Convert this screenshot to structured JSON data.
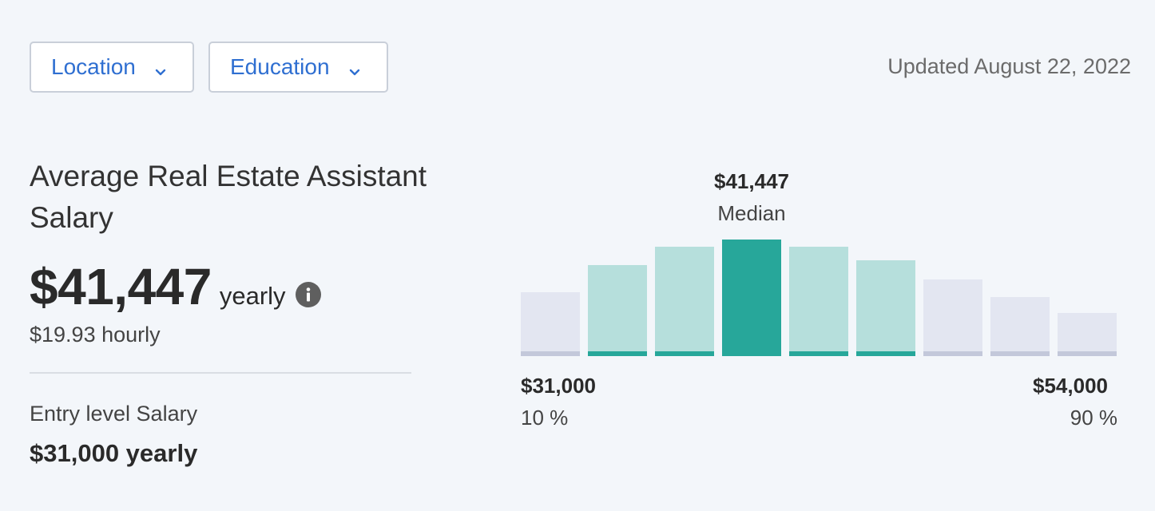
{
  "filters": {
    "location_label": "Location",
    "education_label": "Education"
  },
  "updated_text": "Updated August 22, 2022",
  "title": "Average Real Estate Assistant Salary",
  "salary": {
    "amount": "$41,447",
    "unit": "yearly",
    "hourly": "$19.93 hourly"
  },
  "entry": {
    "label": "Entry level Salary",
    "value": "$31,000 yearly"
  },
  "colors": {
    "accent": "#2f6fd1",
    "median_bar": "#27a79a",
    "highlight_bar": "#b6dfdc",
    "highlight_cap": "#27a79a",
    "neutral_bar": "#e3e6f1",
    "neutral_cap": "#c3c8da"
  },
  "chart_data": {
    "type": "bar",
    "title": "",
    "median_value": "$41,447",
    "median_label": "Median",
    "categories": [
      "1",
      "2",
      "3",
      "4",
      "5",
      "6",
      "7",
      "8",
      "9"
    ],
    "values": [
      0.55,
      0.78,
      0.94,
      1.0,
      0.94,
      0.82,
      0.66,
      0.51,
      0.37
    ],
    "highlight": [
      "neutral",
      "mid",
      "mid",
      "median",
      "mid",
      "mid",
      "neutral",
      "neutral",
      "neutral"
    ],
    "low": {
      "value": "$31,000",
      "percentile": "10 %"
    },
    "high": {
      "value": "$54,000",
      "percentile": "90 %"
    },
    "ylim": [
      0,
      1
    ]
  }
}
